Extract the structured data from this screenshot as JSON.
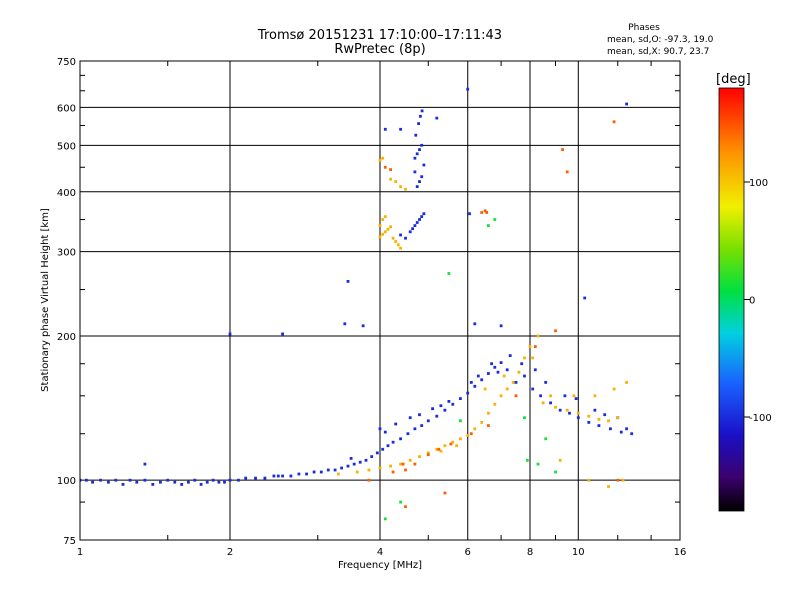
{
  "chart_data": {
    "type": "scatter",
    "title": "Tromsø 20151231 17:10:00–17:11:43",
    "subtitle": "RwPretec (8p)",
    "xlabel": "Frequency [MHz]",
    "ylabel": "Stationary phase Virtual Height [km]",
    "x_scale": "log",
    "y_scale": "log",
    "xlim": [
      1,
      16
    ],
    "ylim": [
      75,
      750
    ],
    "x_ticks": [
      "1",
      "2",
      "4",
      "6",
      "8",
      "10",
      "16"
    ],
    "y_ticks": [
      "75",
      "100",
      "200",
      "300",
      "400",
      "500",
      "600",
      "750"
    ],
    "grid": true,
    "phase_stats": {
      "heading": "Phases",
      "line_o": "mean, sd,O: -97.3, 19.0",
      "line_x": "mean, sd,X:  90.7, 23.7"
    },
    "colorbar": {
      "label": "[deg]",
      "ticks": [
        "100",
        "0",
        "-100"
      ],
      "range": [
        -180,
        180
      ]
    },
    "colors": {
      "o_mode": "#1a2fd6",
      "x_mode": "#e4e61a",
      "x_mode_strong": "#f0a020",
      "grid": "#000000"
    },
    "series": [
      {
        "phase": -100,
        "points": [
          [
            1.0,
            100
          ],
          [
            1.03,
            100
          ],
          [
            1.06,
            99
          ],
          [
            1.1,
            100
          ],
          [
            1.14,
            99
          ],
          [
            1.18,
            100
          ],
          [
            1.22,
            98
          ],
          [
            1.26,
            100
          ],
          [
            1.3,
            99
          ],
          [
            1.35,
            100
          ],
          [
            1.4,
            98
          ],
          [
            1.45,
            99
          ],
          [
            1.5,
            100
          ],
          [
            1.55,
            99
          ],
          [
            1.6,
            98
          ],
          [
            1.65,
            99
          ],
          [
            1.7,
            100
          ],
          [
            1.75,
            98
          ],
          [
            1.8,
            99
          ],
          [
            1.85,
            100
          ],
          [
            1.9,
            99
          ],
          [
            1.95,
            99
          ],
          [
            2.0,
            100
          ],
          [
            2.08,
            100
          ],
          [
            2.15,
            101
          ],
          [
            2.25,
            101
          ],
          [
            2.35,
            101
          ],
          [
            2.45,
            102
          ],
          [
            2.55,
            102
          ],
          [
            2.65,
            102
          ],
          [
            2.75,
            103
          ],
          [
            2.85,
            103
          ],
          [
            2.95,
            104
          ],
          [
            3.05,
            104
          ],
          [
            3.15,
            105
          ],
          [
            3.25,
            105
          ],
          [
            3.35,
            106
          ],
          [
            3.45,
            107
          ],
          [
            3.55,
            108
          ],
          [
            3.65,
            109
          ],
          [
            3.75,
            110
          ],
          [
            3.85,
            112
          ],
          [
            3.95,
            114
          ],
          [
            4.05,
            116
          ],
          [
            4.15,
            118
          ],
          [
            4.25,
            120
          ],
          [
            4.4,
            122
          ],
          [
            4.55,
            125
          ],
          [
            4.7,
            128
          ],
          [
            4.85,
            130
          ],
          [
            5.0,
            133
          ],
          [
            5.2,
            136
          ],
          [
            5.4,
            140
          ],
          [
            5.6,
            144
          ],
          [
            5.8,
            148
          ],
          [
            6.0,
            152
          ],
          [
            6.2,
            157
          ],
          [
            6.4,
            162
          ],
          [
            6.6,
            167
          ],
          [
            6.8,
            172
          ],
          [
            7.0,
            176
          ],
          [
            7.2,
            170
          ],
          [
            7.5,
            160
          ],
          [
            7.8,
            165
          ],
          [
            8.1,
            155
          ],
          [
            8.4,
            150
          ],
          [
            8.8,
            145
          ],
          [
            9.2,
            140
          ],
          [
            9.6,
            138
          ],
          [
            10.0,
            135
          ],
          [
            10.5,
            132
          ],
          [
            11.0,
            130
          ],
          [
            11.6,
            128
          ],
          [
            12.2,
            126
          ],
          [
            12.8,
            125
          ],
          [
            1.35,
            108
          ],
          [
            2.5,
            102
          ],
          [
            3.5,
            111
          ],
          [
            4.1,
            126
          ],
          [
            4.6,
            135
          ],
          [
            5.3,
            143
          ],
          [
            6.1,
            160
          ],
          [
            6.7,
            175
          ],
          [
            7.3,
            182
          ],
          [
            8.2,
            170
          ],
          [
            9.4,
            150
          ],
          [
            10.8,
            140
          ],
          [
            12.0,
            135
          ],
          [
            4.0,
            128
          ],
          [
            4.3,
            131
          ],
          [
            4.8,
            137
          ],
          [
            5.1,
            141
          ],
          [
            5.5,
            146
          ],
          [
            6.3,
            165
          ],
          [
            6.9,
            168
          ],
          [
            7.7,
            175
          ],
          [
            8.6,
            160
          ],
          [
            9.9,
            148
          ],
          [
            11.3,
            137
          ],
          [
            12.5,
            128
          ],
          [
            4.7,
            470
          ],
          [
            4.75,
            480
          ],
          [
            4.8,
            490
          ],
          [
            4.85,
            500
          ],
          [
            4.72,
            525
          ],
          [
            4.78,
            555
          ],
          [
            4.82,
            575
          ],
          [
            4.86,
            590
          ],
          [
            5.2,
            570
          ],
          [
            4.1,
            540
          ],
          [
            4.4,
            540
          ],
          [
            4.75,
            410
          ],
          [
            4.8,
            420
          ],
          [
            4.85,
            430
          ],
          [
            4.7,
            440
          ],
          [
            4.9,
            455
          ],
          [
            4.6,
            330
          ],
          [
            4.65,
            335
          ],
          [
            4.7,
            340
          ],
          [
            4.75,
            345
          ],
          [
            4.8,
            350
          ],
          [
            4.85,
            355
          ],
          [
            4.9,
            360
          ],
          [
            4.4,
            325
          ],
          [
            4.5,
            320
          ],
          [
            3.45,
            260
          ],
          [
            2.0,
            202
          ],
          [
            2.55,
            202
          ],
          [
            3.4,
            212
          ],
          [
            3.7,
            210
          ],
          [
            6.2,
            212
          ],
          [
            7.0,
            210
          ],
          [
            6.05,
            360
          ],
          [
            10.3,
            240
          ],
          [
            12.5,
            610
          ],
          [
            6.0,
            655
          ]
        ]
      },
      {
        "phase": 110,
        "points": [
          [
            4.0,
            322
          ],
          [
            4.05,
            326
          ],
          [
            4.1,
            330
          ],
          [
            4.15,
            334
          ],
          [
            4.2,
            338
          ],
          [
            4.25,
            320
          ],
          [
            4.3,
            315
          ],
          [
            4.35,
            310
          ],
          [
            4.4,
            305
          ],
          [
            4.05,
            350
          ],
          [
            4.1,
            355
          ],
          [
            4.0,
            340
          ],
          [
            4.3,
            420
          ],
          [
            4.4,
            410
          ],
          [
            4.5,
            405
          ],
          [
            4.2,
            425
          ],
          [
            4.0,
            465
          ],
          [
            4.05,
            470
          ],
          [
            4.0,
            106
          ],
          [
            4.2,
            107
          ],
          [
            4.4,
            108
          ],
          [
            4.6,
            110
          ],
          [
            4.8,
            112
          ],
          [
            5.0,
            114
          ],
          [
            5.2,
            116
          ],
          [
            5.4,
            118
          ],
          [
            5.6,
            120
          ],
          [
            5.8,
            122
          ],
          [
            6.0,
            124
          ],
          [
            6.2,
            128
          ],
          [
            6.4,
            132
          ],
          [
            6.6,
            138
          ],
          [
            6.8,
            144
          ],
          [
            7.0,
            150
          ],
          [
            7.2,
            155
          ],
          [
            7.4,
            160
          ],
          [
            7.6,
            168
          ],
          [
            7.8,
            180
          ],
          [
            8.0,
            190
          ],
          [
            8.3,
            200
          ],
          [
            8.5,
            145
          ],
          [
            9.0,
            142
          ],
          [
            9.5,
            140
          ],
          [
            10.0,
            138
          ],
          [
            10.5,
            136
          ],
          [
            11.0,
            134
          ],
          [
            11.5,
            133
          ],
          [
            12.0,
            135
          ],
          [
            12.5,
            160
          ],
          [
            11.8,
            155
          ],
          [
            10.8,
            150
          ],
          [
            9.8,
            150
          ],
          [
            8.8,
            150
          ],
          [
            3.3,
            103
          ],
          [
            3.6,
            104
          ],
          [
            3.8,
            105
          ],
          [
            5.3,
            115
          ],
          [
            5.7,
            118
          ],
          [
            6.5,
            155
          ],
          [
            7.1,
            165
          ],
          [
            8.1,
            180
          ],
          [
            9.2,
            110
          ],
          [
            10.5,
            100
          ],
          [
            11.5,
            97
          ],
          [
            12.3,
            100
          ]
        ]
      },
      {
        "phase": 145,
        "points": [
          [
            4.25,
            104
          ],
          [
            4.5,
            105
          ],
          [
            4.7,
            108
          ],
          [
            5.0,
            113
          ],
          [
            5.25,
            116
          ],
          [
            5.55,
            119
          ],
          [
            6.1,
            125
          ],
          [
            6.6,
            130
          ],
          [
            7.5,
            150
          ],
          [
            8.2,
            190
          ],
          [
            6.4,
            362
          ],
          [
            6.5,
            365
          ],
          [
            6.55,
            362
          ],
          [
            4.1,
            450
          ],
          [
            4.2,
            445
          ],
          [
            4.45,
            108
          ],
          [
            3.8,
            100
          ],
          [
            9.3,
            490
          ],
          [
            9.5,
            440
          ],
          [
            11.8,
            560
          ],
          [
            9.0,
            205
          ],
          [
            12.0,
            100
          ],
          [
            5.4,
            94
          ],
          [
            4.5,
            88
          ]
        ]
      },
      {
        "phase": 15,
        "points": [
          [
            5.5,
            270
          ],
          [
            6.6,
            340
          ],
          [
            6.8,
            350
          ],
          [
            7.9,
            110
          ],
          [
            8.3,
            108
          ],
          [
            9.0,
            104
          ],
          [
            4.1,
            83
          ],
          [
            4.4,
            90
          ],
          [
            5.8,
            133
          ],
          [
            7.8,
            135
          ],
          [
            8.6,
            122
          ]
        ]
      }
    ]
  }
}
